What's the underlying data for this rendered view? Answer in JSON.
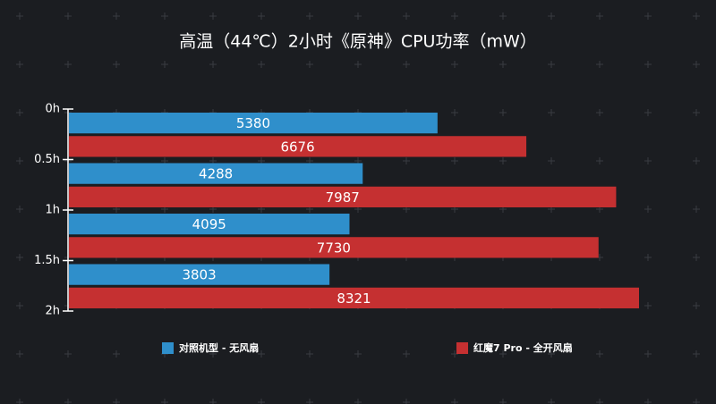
{
  "chart_data": {
    "type": "barh",
    "title": "高温（44℃）2小时《原神》CPU功率（mW）",
    "categories": [
      null,
      null,
      null,
      null
    ],
    "ylim": [
      0,
      2
    ],
    "yticks": [
      {
        "value": 0,
        "label": "0h"
      },
      {
        "value": 0.5,
        "label": "0.5h"
      },
      {
        "value": 1,
        "label": "1h"
      },
      {
        "value": 1.5,
        "label": "1.5h"
      },
      {
        "value": 2,
        "label": "2h"
      }
    ],
    "series": [
      {
        "name": "对照机型 - 无风扇",
        "color": "#2f8fcb",
        "values": [
          5380,
          4288,
          4095,
          3803
        ]
      },
      {
        "name": "红魔7 Pro - 全开风扇",
        "color": "#c53031",
        "values": [
          6676,
          7987,
          7730,
          8321
        ]
      }
    ],
    "legend": "bottom"
  }
}
